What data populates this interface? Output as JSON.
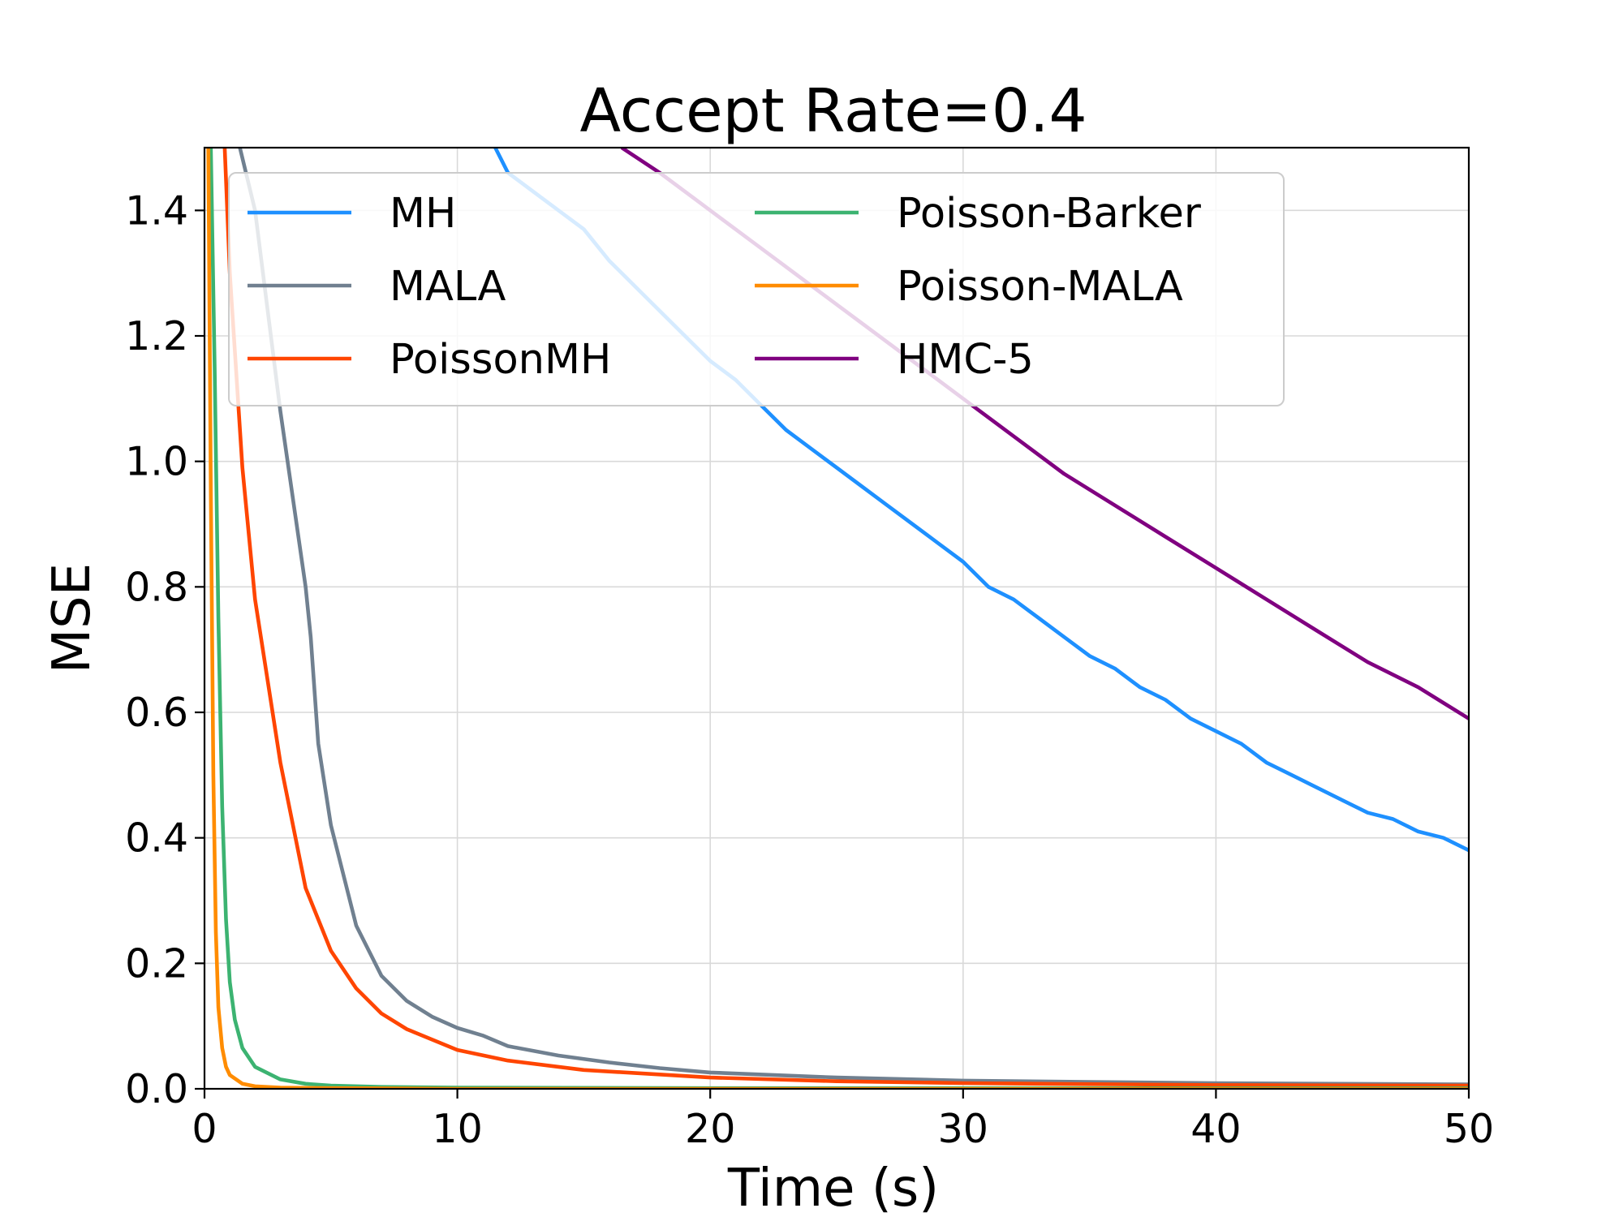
{
  "chart_data": {
    "type": "line",
    "title": "Accept Rate=0.4",
    "xlabel": "Time (s)",
    "ylabel": "MSE",
    "xlim": [
      0,
      50
    ],
    "ylim": [
      0,
      1.5
    ],
    "xticks": [
      0,
      10,
      20,
      30,
      40,
      50
    ],
    "yticks": [
      0.0,
      0.2,
      0.4,
      0.6,
      0.8,
      1.0,
      1.2,
      1.4
    ],
    "xtick_labels": [
      "0",
      "10",
      "20",
      "30",
      "40",
      "50"
    ],
    "ytick_labels": [
      "0.0",
      "0.2",
      "0.4",
      "0.6",
      "0.8",
      "1.0",
      "1.2",
      "1.4"
    ],
    "grid": true,
    "legend_position": "top",
    "series": [
      {
        "name": "MH",
        "color": "#1e90ff",
        "x": [
          11.5,
          12,
          13,
          14,
          15,
          16,
          17,
          18,
          19,
          20,
          21,
          22,
          23,
          24,
          25,
          26,
          27,
          28,
          29,
          30,
          31,
          32,
          33,
          34,
          35,
          36,
          37,
          38,
          39,
          40,
          41,
          42,
          43,
          44,
          45,
          46,
          47,
          48,
          49,
          50
        ],
        "values": [
          1.5,
          1.46,
          1.43,
          1.4,
          1.37,
          1.32,
          1.28,
          1.24,
          1.2,
          1.16,
          1.13,
          1.09,
          1.05,
          1.02,
          0.99,
          0.96,
          0.93,
          0.9,
          0.87,
          0.84,
          0.8,
          0.78,
          0.75,
          0.72,
          0.69,
          0.67,
          0.64,
          0.62,
          0.59,
          0.57,
          0.55,
          0.52,
          0.5,
          0.48,
          0.46,
          0.44,
          0.43,
          0.41,
          0.4,
          0.38
        ]
      },
      {
        "name": "MALA",
        "color": "#708090",
        "x": [
          1.4,
          2,
          3,
          4,
          4.2,
          4.5,
          5,
          6,
          7,
          8,
          9,
          10,
          11,
          12,
          14,
          16,
          18,
          20,
          25,
          30,
          35,
          40,
          45,
          50
        ],
        "values": [
          1.5,
          1.4,
          1.08,
          0.8,
          0.72,
          0.55,
          0.42,
          0.26,
          0.18,
          0.14,
          0.115,
          0.097,
          0.085,
          0.068,
          0.053,
          0.042,
          0.033,
          0.026,
          0.018,
          0.013,
          0.011,
          0.009,
          0.008,
          0.007
        ]
      },
      {
        "name": "PoissonMH",
        "color": "#ff4500",
        "x": [
          0.8,
          1,
          1.5,
          2,
          3,
          4,
          5,
          6,
          7,
          8,
          10,
          12,
          15,
          20,
          25,
          30,
          40,
          50
        ],
        "values": [
          1.5,
          1.3,
          0.99,
          0.78,
          0.52,
          0.32,
          0.22,
          0.16,
          0.12,
          0.095,
          0.062,
          0.045,
          0.03,
          0.018,
          0.012,
          0.009,
          0.006,
          0.005
        ]
      },
      {
        "name": "Poisson-Barker",
        "color": "#3cb371",
        "x": [
          0.25,
          0.4,
          0.55,
          0.7,
          0.85,
          1.0,
          1.2,
          1.5,
          2,
          3,
          4,
          5,
          7,
          10,
          20,
          30,
          40,
          50
        ],
        "values": [
          1.5,
          1.15,
          0.75,
          0.45,
          0.27,
          0.17,
          0.11,
          0.065,
          0.035,
          0.015,
          0.008,
          0.005,
          0.003,
          0.002,
          0.001,
          0.001,
          0.001,
          0.001
        ]
      },
      {
        "name": "Poisson-MALA",
        "color": "#ff8c00",
        "x": [
          0.15,
          0.25,
          0.35,
          0.45,
          0.55,
          0.7,
          0.85,
          1.0,
          1.5,
          2,
          3,
          5,
          10,
          20,
          30,
          40,
          50
        ],
        "values": [
          1.5,
          0.95,
          0.5,
          0.25,
          0.13,
          0.065,
          0.035,
          0.022,
          0.008,
          0.004,
          0.002,
          0.001,
          0.0,
          0.0,
          0.0,
          0.0,
          0.0
        ]
      },
      {
        "name": "HMC-5",
        "color": "#800080",
        "x": [
          16.5,
          18,
          20,
          22,
          24,
          26,
          28,
          30,
          32,
          34,
          36,
          38,
          40,
          42,
          44,
          46,
          48,
          50
        ],
        "values": [
          1.5,
          1.46,
          1.4,
          1.34,
          1.28,
          1.22,
          1.16,
          1.1,
          1.04,
          0.98,
          0.93,
          0.88,
          0.83,
          0.78,
          0.73,
          0.68,
          0.64,
          0.59
        ]
      }
    ]
  }
}
